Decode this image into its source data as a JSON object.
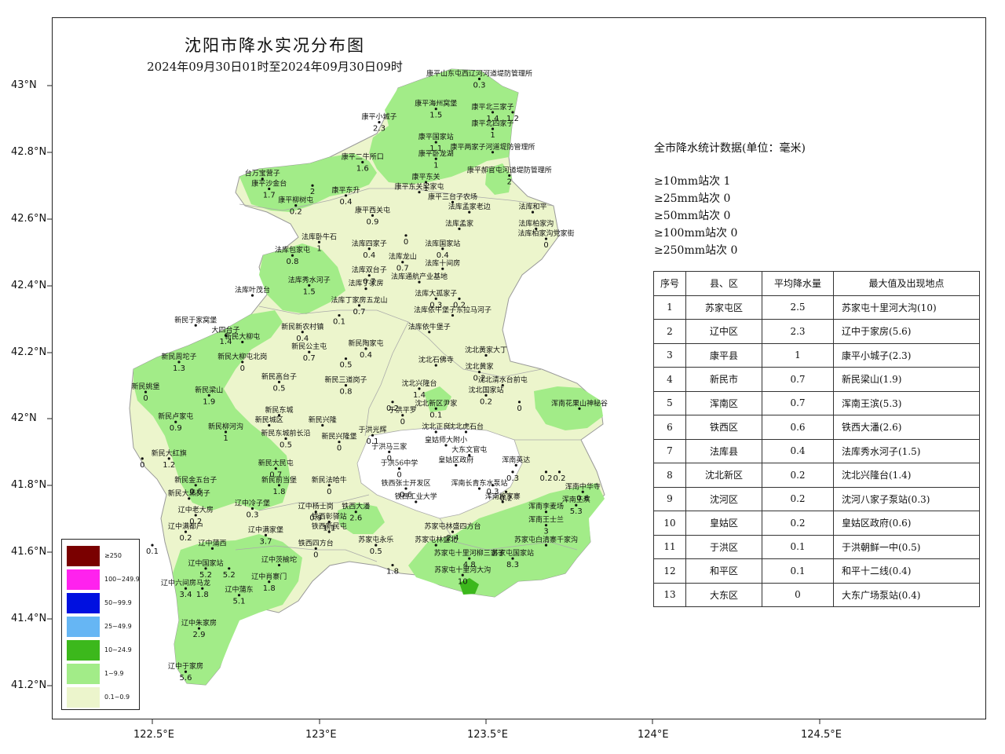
{
  "title": "沈阳市降水实况分布图",
  "subtitle": "2024年09月30日01时至2024年09月30日09时",
  "lat_labels": [
    "43°N",
    "42.8°N",
    "42.6°N",
    "42.4°N",
    "42.2°N",
    "42°N",
    "41.8°N",
    "41.6°N",
    "41.4°N",
    "41.2°N"
  ],
  "lon_labels": [
    "122.5°E",
    "123°E",
    "123.5°E",
    "124°E",
    "124.5°E"
  ],
  "stats": {
    "heading": "全市降水统计数据(单位：毫米)",
    "lines": [
      "≥10mm站次  1",
      "≥25mm站次   0",
      "≥50mm站次   0",
      "≥100mm站次   0",
      "≥250mm站次   0"
    ]
  },
  "table": {
    "headers": [
      "序号",
      "县、区",
      "平均降水量",
      "最大值及出现地点"
    ],
    "rows": [
      [
        "1",
        "苏家屯区",
        "2.5",
        "苏家屯十里河大沟(10)"
      ],
      [
        "2",
        "辽中区",
        "2.3",
        "辽中于家房(5.6)"
      ],
      [
        "3",
        "康平县",
        "1",
        "康平小城子(2.3)"
      ],
      [
        "4",
        "新民市",
        "0.7",
        "新民梁山(1.9)"
      ],
      [
        "5",
        "浑南区",
        "0.7",
        "浑南王滨(5.3)"
      ],
      [
        "6",
        "铁西区",
        "0.6",
        "铁西大潘(2.6)"
      ],
      [
        "7",
        "法库县",
        "0.4",
        "法库秀水河子(1.5)"
      ],
      [
        "8",
        "沈北新区",
        "0.2",
        "沈北兴隆台(1.4)"
      ],
      [
        "9",
        "沈河区",
        "0.2",
        "沈河八家子泵站(0.3)"
      ],
      [
        "10",
        "皇姑区",
        "0.2",
        "皇姑区政府(0.6)"
      ],
      [
        "11",
        "于洪区",
        "0.1",
        "于洪朝鲜一中(0.5)"
      ],
      [
        "12",
        "和平区",
        "0.1",
        "和平十二线(0.4)"
      ],
      [
        "13",
        "大东区",
        "0",
        "大东广场泵站(0.4)"
      ]
    ]
  },
  "legend": [
    {
      "label": "≥250",
      "color": "#7a0000"
    },
    {
      "label": "100~249.9",
      "color": "#ff22ee"
    },
    {
      "label": "50~99.9",
      "color": "#0010e0"
    },
    {
      "label": "25~49.9",
      "color": "#66b6f4"
    },
    {
      "label": "10~24.9",
      "color": "#3cb81c"
    },
    {
      "label": "1~9.9",
      "color": "#a2ec88"
    },
    {
      "label": "0.1~0.9",
      "color": "#ecf5cc"
    }
  ],
  "stations": [
    {
      "name": "康平山东屯西辽河河道堤防管理所",
      "value": "0.3",
      "lon": 123.48,
      "lat": 43.02
    },
    {
      "name": "康平海州窝堡",
      "value": "1.5",
      "lon": 123.35,
      "lat": 42.93
    },
    {
      "name": "康平北三家子",
      "value": "1.4",
      "lon": 123.52,
      "lat": 42.92
    },
    {
      "name": "",
      "value": "1.2",
      "lon": 123.58,
      "lat": 42.92
    },
    {
      "name": "康平小城子",
      "value": "2.3",
      "lon": 123.18,
      "lat": 42.89
    },
    {
      "name": "康平北四家子",
      "value": "1",
      "lon": 123.52,
      "lat": 42.87
    },
    {
      "name": "康平国家站",
      "value": "1.1",
      "lon": 123.35,
      "lat": 42.83
    },
    {
      "name": "康平两家子河道堤防管理所",
      "value": "",
      "lon": 123.52,
      "lat": 42.8
    },
    {
      "name": "康平二牛所口",
      "value": "1.6",
      "lon": 123.13,
      "lat": 42.77
    },
    {
      "name": "康平卧龙湖",
      "value": "1",
      "lon": 123.35,
      "lat": 42.78
    },
    {
      "name": "康平郝官屯河道堤防管理所",
      "value": "2",
      "lon": 123.57,
      "lat": 42.73
    },
    {
      "name": "台万宝营子",
      "value": "",
      "lon": 122.83,
      "lat": 42.72
    },
    {
      "name": "康平沙金台",
      "value": "1.7",
      "lon": 122.85,
      "lat": 42.69
    },
    {
      "name": "",
      "value": "2",
      "lon": 122.98,
      "lat": 42.7
    },
    {
      "name": "康平东关",
      "value": "1",
      "lon": 123.32,
      "lat": 42.71
    },
    {
      "name": "康平东升",
      "value": "0.4",
      "lon": 123.08,
      "lat": 42.67
    },
    {
      "name": "康平东关梁家屯",
      "value": "",
      "lon": 123.3,
      "lat": 42.68
    },
    {
      "name": "康平柳树屯",
      "value": "0.2",
      "lon": 122.93,
      "lat": 42.64
    },
    {
      "name": "康平三台子农场",
      "value": "",
      "lon": 123.4,
      "lat": 42.65
    },
    {
      "name": "法库孟家老边",
      "value": "",
      "lon": 123.45,
      "lat": 42.62
    },
    {
      "name": "法库和平",
      "value": "",
      "lon": 123.64,
      "lat": 42.62
    },
    {
      "name": "康平西关屯",
      "value": "0.9",
      "lon": 123.16,
      "lat": 42.61
    },
    {
      "name": "法库柏家沟",
      "value": "",
      "lon": 123.65,
      "lat": 42.57
    },
    {
      "name": "法库孟家",
      "value": "",
      "lon": 123.42,
      "lat": 42.57
    },
    {
      "name": "法库柏家沟党家街",
      "value": "0",
      "lon": 123.68,
      "lat": 42.54
    },
    {
      "name": "法库卧牛石",
      "value": "1",
      "lon": 123.0,
      "lat": 42.53
    },
    {
      "name": "",
      "value": "0",
      "lon": 123.26,
      "lat": 42.55
    },
    {
      "name": "法库四家子",
      "value": "0.4",
      "lon": 123.15,
      "lat": 42.51
    },
    {
      "name": "法库国家站",
      "value": "0.4",
      "lon": 123.37,
      "lat": 42.51
    },
    {
      "name": "法库包家屯",
      "value": "0.8",
      "lon": 122.92,
      "lat": 42.49
    },
    {
      "name": "法库龙山",
      "value": "0.7",
      "lon": 123.25,
      "lat": 42.47
    },
    {
      "name": "法库十间房",
      "value": "",
      "lon": 123.37,
      "lat": 42.45
    },
    {
      "name": "法库双台子",
      "value": "0.7",
      "lon": 123.15,
      "lat": 42.43
    },
    {
      "name": "法库通航产业基地",
      "value": "",
      "lon": 123.3,
      "lat": 42.41
    },
    {
      "name": "法库秀水河子",
      "value": "1.5",
      "lon": 122.97,
      "lat": 42.4
    },
    {
      "name": "法库丁家房",
      "value": "",
      "lon": 123.14,
      "lat": 42.39
    },
    {
      "name": "法库叶茂台",
      "value": "",
      "lon": 122.8,
      "lat": 42.37
    },
    {
      "name": "法库大孤家子",
      "value": "0.3",
      "lon": 123.35,
      "lat": 42.36
    },
    {
      "name": "",
      "value": "0.2",
      "lon": 123.42,
      "lat": 42.36
    },
    {
      "name": "法库丁家房五龙山",
      "value": "0.7",
      "lon": 123.12,
      "lat": 42.34
    },
    {
      "name": "",
      "value": "0.1",
      "lon": 123.06,
      "lat": 42.31
    },
    {
      "name": "法库依牛堡子东拉马河子",
      "value": "",
      "lon": 123.4,
      "lat": 42.31
    },
    {
      "name": "新民于家窝堡",
      "value": "",
      "lon": 122.63,
      "lat": 42.28
    },
    {
      "name": "新民新农村镇",
      "value": "0.4",
      "lon": 122.95,
      "lat": 42.26
    },
    {
      "name": "法库依牛堡子",
      "value": "",
      "lon": 123.33,
      "lat": 42.26
    },
    {
      "name": "大四台子",
      "value": "1.4",
      "lon": 122.72,
      "lat": 42.25
    },
    {
      "name": "新民大柳屯",
      "value": "",
      "lon": 122.77,
      "lat": 42.23
    },
    {
      "name": "新民陶家屯",
      "value": "0.4",
      "lon": 123.14,
      "lat": 42.21
    },
    {
      "name": "新民公主屯",
      "value": "0.7",
      "lon": 122.97,
      "lat": 42.2
    },
    {
      "name": "",
      "value": "0.5",
      "lon": 123.08,
      "lat": 42.18
    },
    {
      "name": "沈北黄家大丁",
      "value": "",
      "lon": 123.5,
      "lat": 42.19
    },
    {
      "name": "新民周坨子",
      "value": "1.3",
      "lon": 122.58,
      "lat": 42.17
    },
    {
      "name": "新民大柳屯北岗",
      "value": "0",
      "lon": 122.77,
      "lat": 42.17
    },
    {
      "name": "沈北石佛寺",
      "value": "",
      "lon": 123.35,
      "lat": 42.16
    },
    {
      "name": "沈北黄家",
      "value": "0.2",
      "lon": 123.48,
      "lat": 42.14
    },
    {
      "name": "新民高台子",
      "value": "0.5",
      "lon": 122.88,
      "lat": 42.11
    },
    {
      "name": "新民三道岗子",
      "value": "0.8",
      "lon": 123.08,
      "lat": 42.1
    },
    {
      "name": "沈北清水台前屯",
      "value": "",
      "lon": 123.55,
      "lat": 42.1
    },
    {
      "name": "沈北兴隆台",
      "value": "1.4",
      "lon": 123.3,
      "lat": 42.09
    },
    {
      "name": "新民姚堡",
      "value": "0",
      "lon": 122.48,
      "lat": 42.08
    },
    {
      "name": "新民梁山",
      "value": "1.9",
      "lon": 122.67,
      "lat": 42.07
    },
    {
      "name": "沈北国家站",
      "value": "0.2",
      "lon": 123.5,
      "lat": 42.07
    },
    {
      "name": "",
      "value": "0",
      "lon": 123.6,
      "lat": 42.05
    },
    {
      "name": "浑南花果山神秘谷",
      "value": "",
      "lon": 123.78,
      "lat": 42.03
    },
    {
      "name": "",
      "value": "0.2",
      "lon": 123.22,
      "lat": 42.05
    },
    {
      "name": "沈北新区尹家",
      "value": "0.1",
      "lon": 123.35,
      "lat": 42.03
    },
    {
      "name": "新民东城",
      "value": "",
      "lon": 122.88,
      "lat": 42.01
    },
    {
      "name": "新民卢家屯",
      "value": "0.9",
      "lon": 122.57,
      "lat": 41.99
    },
    {
      "name": "于洪平罗",
      "value": "0",
      "lon": 123.25,
      "lat": 42.01
    },
    {
      "name": "新民城区",
      "value": "",
      "lon": 122.85,
      "lat": 41.98
    },
    {
      "name": "新民兴隆",
      "value": "",
      "lon": 123.01,
      "lat": 41.98
    },
    {
      "name": "沈北正良",
      "value": "",
      "lon": 123.35,
      "lat": 41.96
    },
    {
      "name": "沈北虎石台",
      "value": "",
      "lon": 123.44,
      "lat": 41.96
    },
    {
      "name": "新民柳河沟",
      "value": "1",
      "lon": 122.72,
      "lat": 41.96
    },
    {
      "name": "新民东城前长沿",
      "value": "0.5",
      "lon": 122.9,
      "lat": 41.94
    },
    {
      "name": "于洪光辉",
      "value": "0.1",
      "lon": 123.16,
      "lat": 41.95
    },
    {
      "name": "新民兴隆堡",
      "value": "0",
      "lon": 123.06,
      "lat": 41.93
    },
    {
      "name": "皇姑师大附小",
      "value": "",
      "lon": 123.38,
      "lat": 41.92
    },
    {
      "name": "于洪马三家",
      "value": "0",
      "lon": 123.21,
      "lat": 41.9
    },
    {
      "name": "大东文官屯",
      "value": "",
      "lon": 123.45,
      "lat": 41.89
    },
    {
      "name": "新民大红旗",
      "value": "1.2",
      "lon": 122.55,
      "lat": 41.88
    },
    {
      "name": "",
      "value": "0",
      "lon": 122.47,
      "lat": 41.88
    },
    {
      "name": "浑南英达",
      "value": "",
      "lon": 123.59,
      "lat": 41.86
    },
    {
      "name": "新民大民屯",
      "value": "0.7",
      "lon": 122.87,
      "lat": 41.85
    },
    {
      "name": "于洪56中学",
      "value": "0",
      "lon": 123.24,
      "lat": 41.85
    },
    {
      "name": "皇姑区政府",
      "value": "",
      "lon": 123.41,
      "lat": 41.86
    },
    {
      "name": "",
      "value": "0.3",
      "lon": 123.58,
      "lat": 41.84
    },
    {
      "name": "",
      "value": "0.2",
      "lon": 123.68,
      "lat": 41.84
    },
    {
      "name": "",
      "value": "0.2",
      "lon": 123.72,
      "lat": 41.84
    },
    {
      "name": "新民金五台子",
      "value": "0.6",
      "lon": 122.63,
      "lat": 41.8
    },
    {
      "name": "新民前当堡",
      "value": "1.8",
      "lon": 122.88,
      "lat": 41.8
    },
    {
      "name": "新民法哈牛",
      "value": "0",
      "lon": 123.03,
      "lat": 41.8
    },
    {
      "name": "铁西张士开发区",
      "value": "0.6",
      "lon": 123.26,
      "lat": 41.79
    },
    {
      "name": "浑南长青东水泵站",
      "value": "",
      "lon": 123.48,
      "lat": 41.79
    },
    {
      "name": "",
      "value": "0.3",
      "lon": 123.52,
      "lat": 41.8
    },
    {
      "name": "",
      "value": "0.2",
      "lon": 123.56,
      "lat": 41.78
    },
    {
      "name": "浑南中华寺",
      "value": "0.6",
      "lon": 123.79,
      "lat": 41.78
    },
    {
      "name": "新民大黑岗子",
      "value": "",
      "lon": 122.61,
      "lat": 41.76
    },
    {
      "name": "铁西工业大学",
      "value": "",
      "lon": 123.29,
      "lat": 41.75
    },
    {
      "name": "浑南施家寨",
      "value": "",
      "lon": 123.55,
      "lat": 41.75
    },
    {
      "name": "浑南王滨",
      "value": "5.3",
      "lon": 123.77,
      "lat": 41.74
    },
    {
      "name": "辽中冷子堡",
      "value": "0.3",
      "lon": 122.8,
      "lat": 41.73
    },
    {
      "name": "辽中杨士岗",
      "value": "0.9",
      "lon": 122.99,
      "lat": 41.72
    },
    {
      "name": "铁西大潘",
      "value": "2.6",
      "lon": 123.11,
      "lat": 41.72
    },
    {
      "name": "浑南李麦场",
      "value": "",
      "lon": 123.68,
      "lat": 41.72
    },
    {
      "name": "辽中老大房",
      "value": "0.2",
      "lon": 122.63,
      "lat": 41.71
    },
    {
      "name": "铁西彰驿站",
      "value": "1.1",
      "lon": 123.03,
      "lat": 41.69
    },
    {
      "name": "浑南王士兰",
      "value": "3",
      "lon": 123.68,
      "lat": 41.68
    },
    {
      "name": "辽中满都户",
      "value": "0.2",
      "lon": 122.6,
      "lat": 41.66
    },
    {
      "name": "辽中满家堡",
      "value": "3.7",
      "lon": 122.84,
      "lat": 41.65
    },
    {
      "name": "铁西新民屯",
      "value": "",
      "lon": 123.03,
      "lat": 41.66
    },
    {
      "name": "苏家屯林盛四方台",
      "value": "2.4",
      "lon": 123.4,
      "lat": 41.66
    },
    {
      "name": "",
      "value": "0.1",
      "lon": 122.5,
      "lat": 41.62
    },
    {
      "name": "辽中蒲西",
      "value": "",
      "lon": 122.68,
      "lat": 41.61
    },
    {
      "name": "铁西四方台",
      "value": "0",
      "lon": 122.99,
      "lat": 41.61
    },
    {
      "name": "苏家屯永乐",
      "value": "0.5",
      "lon": 123.17,
      "lat": 41.62
    },
    {
      "name": "苏家屯林盛北",
      "value": "",
      "lon": 123.35,
      "lat": 41.62
    },
    {
      "name": "苏家屯白清寨千家沟",
      "value": "",
      "lon": 123.68,
      "lat": 41.62
    },
    {
      "name": "苏家屯十里河柳三家子",
      "value": "4.8",
      "lon": 123.45,
      "lat": 41.58
    },
    {
      "name": "苏家屯国家站",
      "value": "8.3",
      "lon": 123.58,
      "lat": 41.58
    },
    {
      "name": "",
      "value": "1.8",
      "lon": 123.22,
      "lat": 41.56
    },
    {
      "name": "辽中国家站",
      "value": "5.2",
      "lon": 122.66,
      "lat": 41.55
    },
    {
      "name": "",
      "value": "5.2",
      "lon": 122.73,
      "lat": 41.55
    },
    {
      "name": "辽中茨榆坨",
      "value": "",
      "lon": 122.88,
      "lat": 41.56
    },
    {
      "name": "苏家屯十里河大沟",
      "value": "10",
      "lon": 123.43,
      "lat": 41.53
    },
    {
      "name": "辽中肖寨门",
      "value": "1.8",
      "lon": 122.85,
      "lat": 41.51
    },
    {
      "name": "辽中六间房马龙",
      "value": "3.4",
      "lon": 122.6,
      "lat": 41.49
    },
    {
      "name": "",
      "value": "1.8",
      "lon": 122.65,
      "lat": 41.49
    },
    {
      "name": "辽中蒲东",
      "value": "5.1",
      "lon": 122.76,
      "lat": 41.47
    },
    {
      "name": "辽中朱家房",
      "value": "2.9",
      "lon": 122.64,
      "lat": 41.37
    },
    {
      "name": "辽中于家房",
      "value": "5.6",
      "lon": 122.6,
      "lat": 41.24
    }
  ]
}
